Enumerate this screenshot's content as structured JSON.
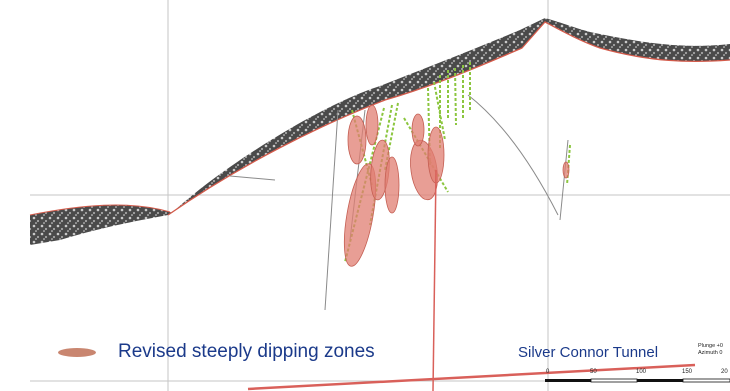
{
  "legend": {
    "swatch_color": "#c98670",
    "label": "Revised steeply dipping zones"
  },
  "tunnel": {
    "label": "Silver Connor Tunnel",
    "color": "#d9605a"
  },
  "orientation": {
    "plunge": "Plunge +0",
    "azimuth": "Azimuth 0"
  },
  "scale": {
    "ticks": [
      "0",
      "50",
      "100",
      "150",
      "20"
    ]
  },
  "colors": {
    "terrain": "#3a3a3a",
    "zones": "#e07e72",
    "drillholes": "#8cc63f"
  }
}
